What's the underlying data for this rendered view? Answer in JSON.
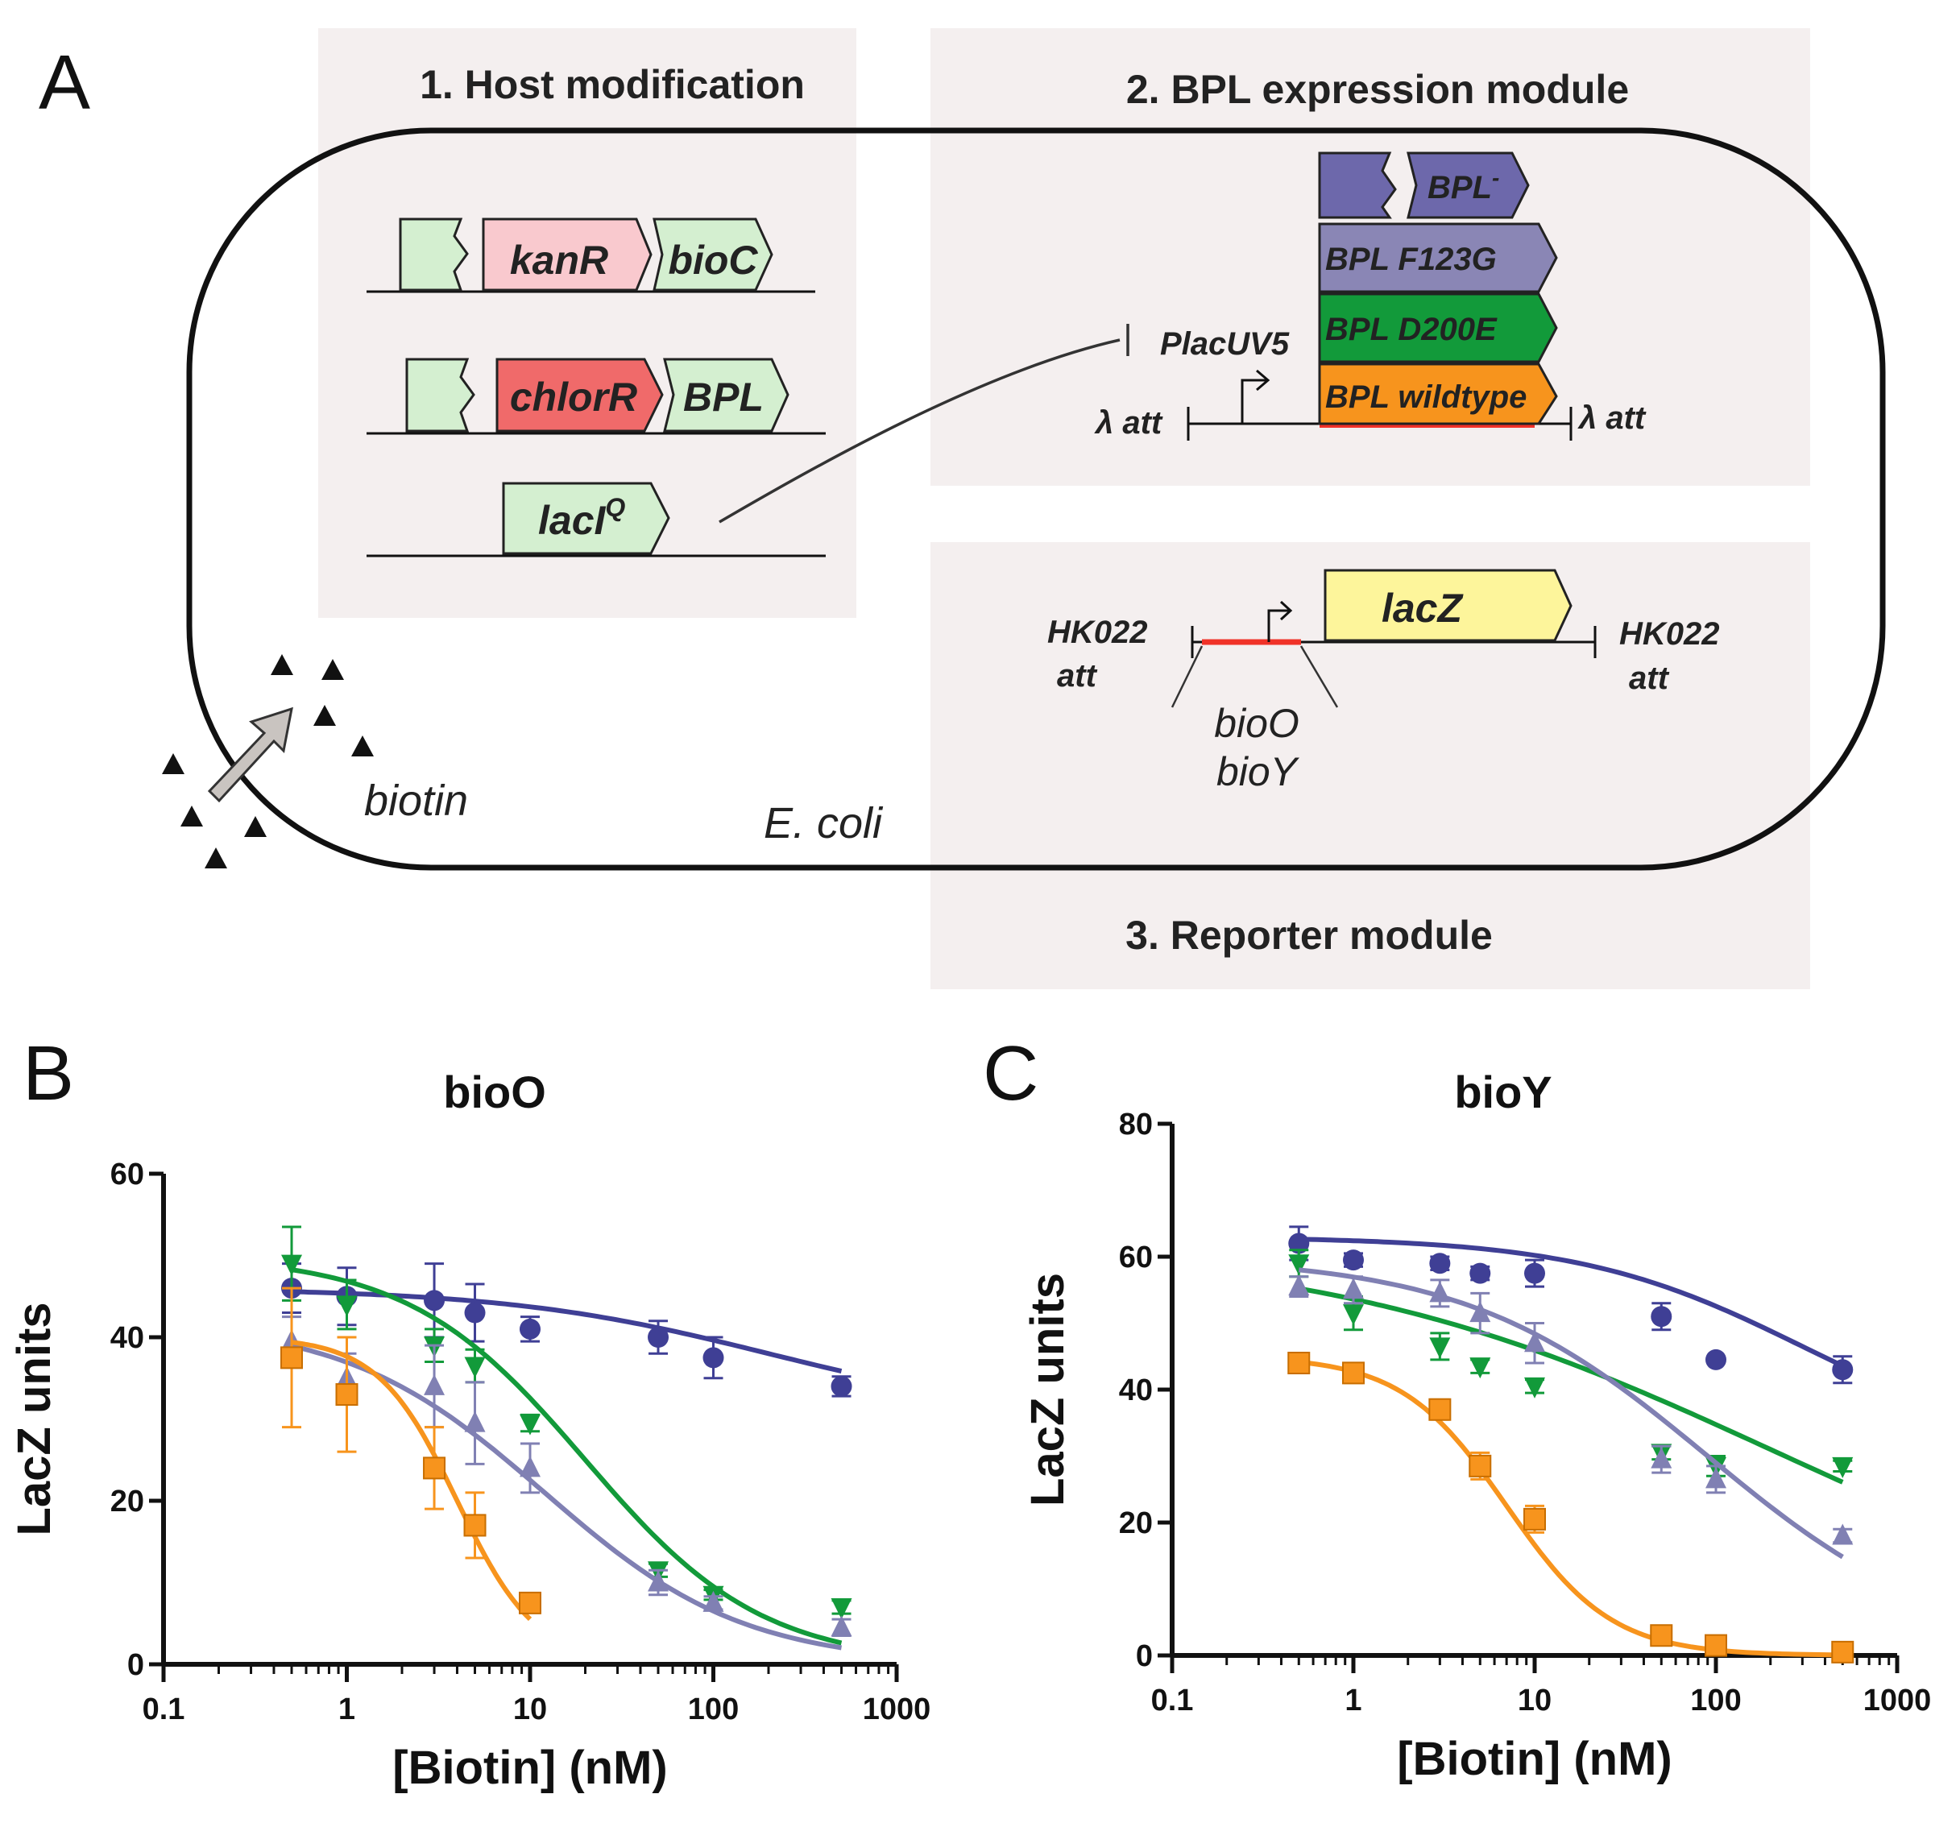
{
  "panels": {
    "a": "A",
    "b": "B",
    "c": "C"
  },
  "sections": {
    "host": "1. Host modification",
    "bpl": "2. BPL expression module",
    "reporter": "3. Reporter module"
  },
  "host_genes": {
    "kanR": "kanR",
    "bioC": "bioC",
    "chlorR": "chlorR",
    "bpl": "BPL",
    "lacI_base": "lacI",
    "lacI_sup": "Q"
  },
  "bpl_module": {
    "bpl_minus_base": "BPL",
    "bpl_minus_sup": "-",
    "f123g": "BPL F123G",
    "d200e": "BPL D200E",
    "wildtype": "BPL wildtype",
    "promoter": "PlacUV5",
    "att_left": "λ att",
    "att_right": "λ att"
  },
  "reporter": {
    "lacZ": "lacZ",
    "hk_left_1": "HK022",
    "hk_left_2": "att",
    "hk_right_1": "HK022",
    "hk_right_2": "att",
    "bioO": "bioO",
    "bioY": "bioY"
  },
  "cell": {
    "label": "E. coli",
    "biotin": "biotin"
  },
  "colors": {
    "wildtype": "#f7941d",
    "bpl_minus": "#3f3f95",
    "f123g": "#8080b3",
    "d200e": "#129a3a",
    "host_green": "#d4efd0",
    "kanR": "#f9c9ce",
    "chlorR": "#f06a6a",
    "lacZ": "#fdf59b",
    "section_bg": "#f4efef",
    "red_bar": "#f03228"
  },
  "chart_data": [
    {
      "type": "scatter",
      "title": "bioO",
      "xlabel": "[Biotin] (nM)",
      "ylabel": "LacZ units",
      "xscale": "log",
      "xlim": [
        0.1,
        1000
      ],
      "ylim": [
        0,
        60
      ],
      "xticks": [
        "0.1",
        "1",
        "10",
        "100",
        "1000"
      ],
      "yticks": [
        "0",
        "20",
        "40",
        "60"
      ],
      "series": [
        {
          "name": "BPL-",
          "color": "#3f3f95",
          "marker": "circle",
          "x": [
            0.5,
            1,
            3,
            5,
            10,
            50,
            100,
            500
          ],
          "y": [
            46,
            45,
            44.5,
            43,
            41,
            40,
            37.5,
            34
          ],
          "err": [
            3,
            3.5,
            4.5,
            3.5,
            1.5,
            2,
            2.5,
            1.2
          ],
          "fit": {
            "top": 46,
            "bottom": 30,
            "ec50": 200,
            "hill": 0.6
          }
        },
        {
          "name": "BPL D200E",
          "color": "#129a3a",
          "marker": "triangle-down",
          "x": [
            0.5,
            1,
            3,
            5,
            10,
            50,
            100,
            500
          ],
          "y": [
            49,
            44,
            39,
            36.5,
            29.5,
            11.5,
            8.5,
            7
          ],
          "err": [
            4.5,
            3,
            2,
            2,
            1,
            0.8,
            0.6,
            0.8
          ],
          "fit": {
            "top": 50,
            "bottom": 0,
            "ec50": 20,
            "hill": 0.9
          }
        },
        {
          "name": "BPL F123G",
          "color": "#8080b3",
          "marker": "triangle-up",
          "x": [
            0.5,
            1,
            3,
            5,
            10,
            50,
            100,
            500
          ],
          "y": [
            39.5,
            35,
            34,
            29.5,
            24,
            10,
            7.5,
            4.5
          ],
          "err": [
            3,
            3,
            5,
            5,
            3,
            1.5,
            0.8,
            1
          ],
          "fit": {
            "top": 42,
            "bottom": 0,
            "ec50": 12,
            "hill": 0.8
          }
        },
        {
          "name": "BPL wildtype",
          "color": "#f7941d",
          "marker": "square",
          "x": [
            0.5,
            1,
            3,
            5,
            10
          ],
          "y": [
            37.5,
            33,
            24,
            17,
            7.5
          ],
          "err": [
            8.5,
            7,
            5,
            4,
            1
          ],
          "fit": {
            "top": 40,
            "bottom": 0,
            "ec50": 4,
            "hill": 2.0
          }
        }
      ]
    },
    {
      "type": "scatter",
      "title": "bioY",
      "xlabel": "[Biotin] (nM)",
      "ylabel": "LacZ units",
      "xscale": "log",
      "xlim": [
        0.1,
        1000
      ],
      "ylim": [
        0,
        80
      ],
      "xticks": [
        "0.1",
        "1",
        "10",
        "100",
        "1000"
      ],
      "yticks": [
        "0",
        "20",
        "40",
        "60",
        "80"
      ],
      "series": [
        {
          "name": "BPL-",
          "color": "#3f3f95",
          "marker": "circle",
          "x": [
            0.5,
            1,
            3,
            5,
            10,
            50,
            100,
            500
          ],
          "y": [
            62,
            59.5,
            59,
            57.5,
            57.5,
            51,
            44.5,
            43
          ],
          "err": [
            2.5,
            1,
            1,
            1,
            2,
            2,
            0,
            2
          ],
          "fit": {
            "top": 63,
            "bottom": 30,
            "ec50": 300,
            "hill": 0.7
          }
        },
        {
          "name": "BPL D200E",
          "color": "#129a3a",
          "marker": "triangle-down",
          "x": [
            0.5,
            1,
            3,
            5,
            10,
            50,
            100,
            500
          ],
          "y": [
            59,
            51.5,
            46.5,
            43.5,
            40.5,
            30.5,
            28.5,
            28.5
          ],
          "err": [
            2,
            2.5,
            2,
            1,
            1,
            1,
            1.5,
            0.8
          ],
          "fit": {
            "top": 62,
            "bottom": 0,
            "ec50": 200,
            "hill": 0.35
          }
        },
        {
          "name": "BPL F123G",
          "color": "#8080b3",
          "marker": "triangle-up",
          "x": [
            0.5,
            1,
            3,
            5,
            10,
            50,
            100,
            500
          ],
          "y": [
            55.5,
            55,
            54.5,
            51.5,
            47,
            29.5,
            26.5,
            18
          ],
          "err": [
            1.5,
            2,
            2,
            3,
            3,
            2,
            2,
            1
          ],
          "fit": {
            "top": 60,
            "bottom": 0,
            "ec50": 90,
            "hill": 0.65
          }
        },
        {
          "name": "BPL wildtype",
          "color": "#f7941d",
          "marker": "square",
          "x": [
            0.5,
            1,
            3,
            5,
            10,
            50,
            100,
            500
          ],
          "y": [
            44,
            42.5,
            37,
            28.5,
            20.5,
            3,
            1.5,
            0.5
          ],
          "err": [
            1,
            1.5,
            1.5,
            2,
            2,
            0.8,
            0.8,
            0.5
          ],
          "fit": {
            "top": 45,
            "bottom": 0,
            "ec50": 7,
            "hill": 1.5
          }
        }
      ]
    }
  ]
}
